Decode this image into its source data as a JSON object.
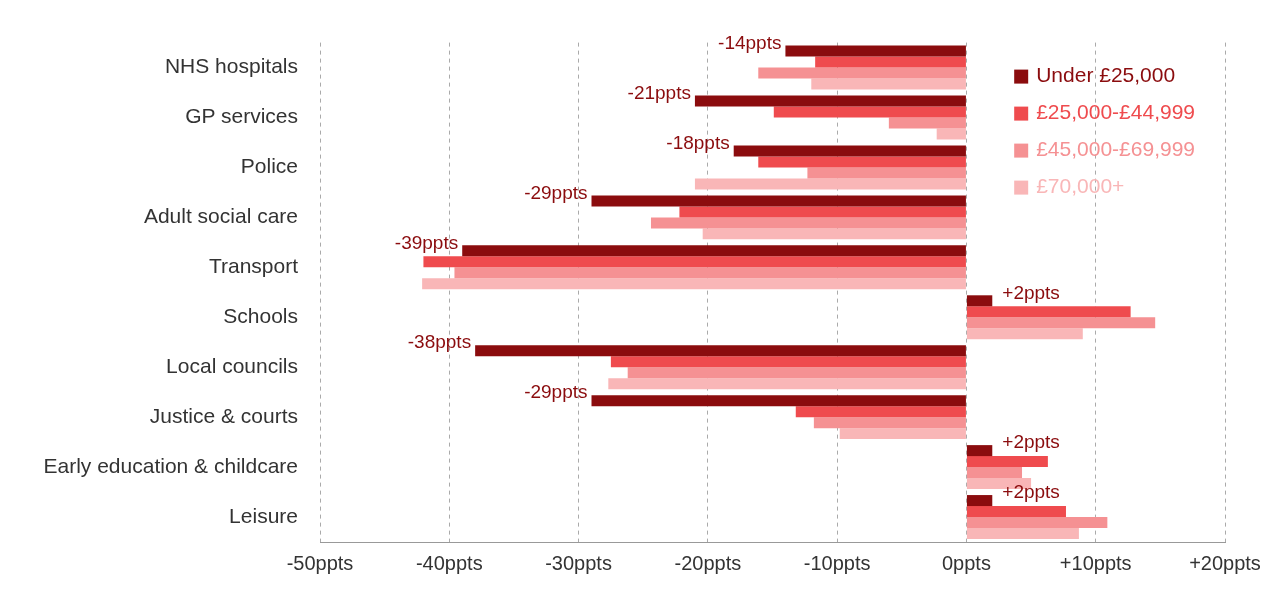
{
  "chart_data": {
    "type": "bar",
    "orientation": "horizontal",
    "categories": [
      "NHS hospitals",
      "GP services",
      "Police",
      "Adult social care",
      "Transport",
      "Schools",
      "Local councils",
      "Justice & courts",
      "Early education & childcare",
      "Leisure"
    ],
    "series": [
      {
        "name": "Under £25,000",
        "color": "#8b0c0e",
        "values": [
          -14,
          -21,
          -18,
          -29,
          -39,
          2,
          -38,
          -29,
          2,
          2
        ],
        "value_labels": [
          "-14ppts",
          "-21ppts",
          "-18ppts",
          "-29ppts",
          "-39ppts",
          "+2ppts",
          "-38ppts",
          "-29ppts",
          "+2ppts",
          "+2ppts"
        ]
      },
      {
        "name": "£25,000-£44,999",
        "color": "#ef4b4e",
        "values": [
          -11.7,
          -14.9,
          -16.1,
          -22.2,
          -42,
          12.7,
          -27.5,
          -13.2,
          6.3,
          7.7
        ]
      },
      {
        "name": "£45,000-£69,999",
        "color": "#f59193",
        "values": [
          -16.1,
          -6,
          -12.3,
          -24.4,
          -39.6,
          14.6,
          -26.2,
          -11.8,
          4.3,
          10.9
        ]
      },
      {
        "name": "£70,000+",
        "color": "#f9b6b7",
        "values": [
          -12,
          -2.3,
          -21,
          -20.4,
          -42.1,
          9,
          -27.7,
          -9.8,
          5,
          8.7
        ]
      }
    ],
    "xlim": [
      -50,
      20
    ],
    "xticks": [
      {
        "value": -50,
        "label": "-50ppts"
      },
      {
        "value": -40,
        "label": "-40ppts"
      },
      {
        "value": -30,
        "label": "-30ppts"
      },
      {
        "value": -20,
        "label": "-20ppts"
      },
      {
        "value": -10,
        "label": "-10ppts"
      },
      {
        "value": 0,
        "label": "0ppts"
      },
      {
        "value": 10,
        "label": "+10ppts"
      },
      {
        "value": 20,
        "label": "+20ppts"
      }
    ],
    "grid": "x",
    "legend": "top right"
  }
}
